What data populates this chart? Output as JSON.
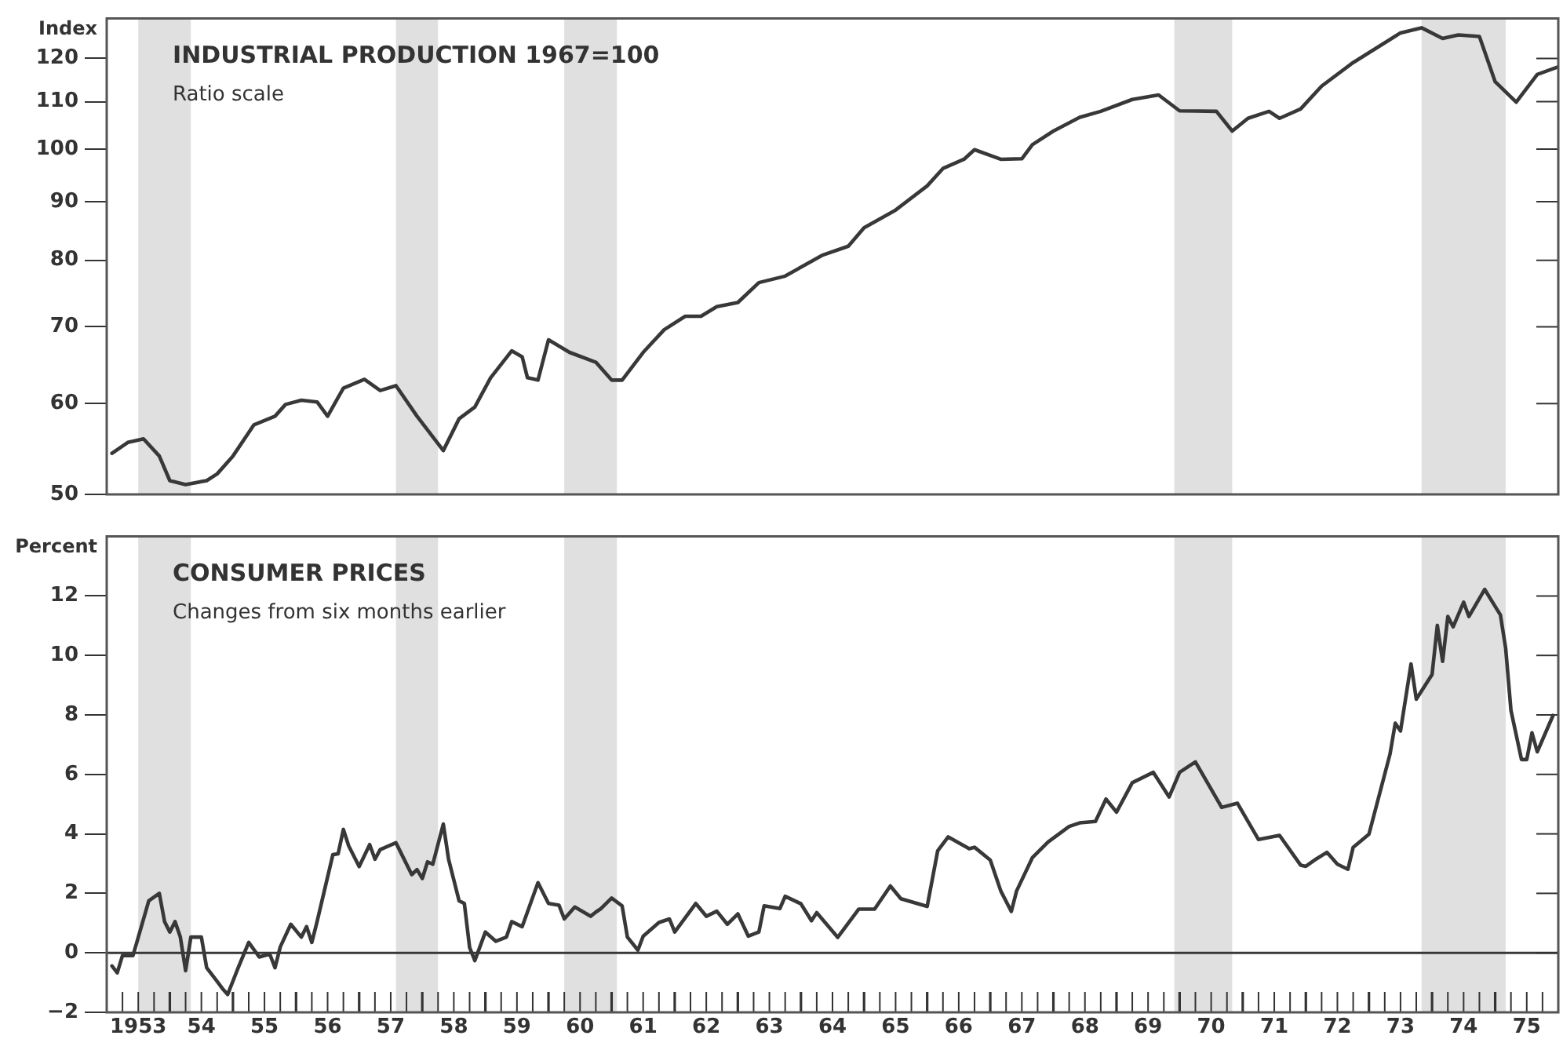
{
  "chart_data": [
    {
      "type": "line",
      "title": "INDUSTRIAL PRODUCTION 1967=100",
      "subtitle": "Ratio scale",
      "ylabel": "Index",
      "log": "y",
      "grid": false,
      "tick_labels": "y",
      "xlim": [
        "1953-01",
        "1976-01"
      ],
      "ylim": [
        50,
        130
      ],
      "yticks": [
        50,
        60,
        70,
        80,
        90,
        100,
        110,
        120
      ],
      "bands": [
        {
          "axis": "x",
          "from": "1953-07",
          "to": "1954-05",
          "color": "#e0e0e0"
        },
        {
          "axis": "x",
          "from": "1957-08",
          "to": "1958-04",
          "color": "#e0e0e0"
        },
        {
          "axis": "x",
          "from": "1960-04",
          "to": "1961-02",
          "color": "#e0e0e0"
        },
        {
          "axis": "x",
          "from": "1969-12",
          "to": "1970-11",
          "color": "#e0e0e0"
        },
        {
          "axis": "x",
          "from": "1973-11",
          "to": "1975-03",
          "color": "#e0e0e0"
        }
      ],
      "series": [
        {
          "color": "#383838",
          "x": [
            "1953-02",
            "1953-05",
            "1953-08",
            "1953-11",
            "1954-01",
            "1954-04",
            "1954-08",
            "1954-10",
            "1955-01",
            "1955-05",
            "1955-09",
            "1955-11",
            "1956-02",
            "1956-05",
            "1956-07",
            "1956-10",
            "1957-02",
            "1957-05",
            "1957-08",
            "1957-12",
            "1958-05",
            "1958-08",
            "1958-11",
            "1959-02",
            "1959-06",
            "1959-08",
            "1959-09",
            "1959-11",
            "1960-01",
            "1960-05",
            "1960-10",
            "1961-01",
            "1961-03",
            "1961-07",
            "1961-11",
            "1962-03",
            "1962-06",
            "1962-09",
            "1963-01",
            "1963-05",
            "1963-10",
            "1964-05",
            "1964-10",
            "1965-01",
            "1965-07",
            "1966-01",
            "1966-04",
            "1966-08",
            "1966-10",
            "1967-03",
            "1967-07",
            "1967-09",
            "1968-01",
            "1968-06",
            "1968-10",
            "1969-04",
            "1969-09",
            "1970-01",
            "1970-08",
            "1970-11",
            "1971-02",
            "1971-06",
            "1971-08",
            "1971-12",
            "1972-04",
            "1972-10",
            "1973-03",
            "1973-07",
            "1973-11",
            "1974-03",
            "1974-06",
            "1974-10",
            "1975-01",
            "1975-05",
            "1975-09",
            "1976-01"
          ],
          "values": [
            54.3,
            55.5,
            55.9,
            54,
            51.4,
            51,
            51.4,
            52.1,
            54,
            57.5,
            58.5,
            59.9,
            60.4,
            60.2,
            58.5,
            61.9,
            63,
            61.6,
            62.2,
            58.5,
            54.6,
            58.2,
            59.6,
            63.2,
            66.7,
            65.9,
            63.2,
            62.9,
            68.2,
            66.5,
            65.2,
            62.9,
            62.9,
            66.5,
            69.6,
            71.5,
            71.5,
            72.9,
            73.5,
            76.5,
            77.5,
            80.8,
            82.3,
            85.4,
            88.5,
            92.9,
            96.2,
            98,
            99.9,
            98,
            98.1,
            100.9,
            103.7,
            106.6,
            107.9,
            110.5,
            111.5,
            108,
            107.9,
            103.7,
            106.4,
            107.9,
            106.4,
            108.4,
            113.5,
            119,
            123,
            126.3,
            127.6,
            124.9,
            125.8,
            125.4,
            114.5,
            109.9,
            116.2,
            118
          ]
        }
      ]
    },
    {
      "type": "line",
      "title": "CONSUMER PRICES",
      "subtitle": "Changes from six months earlier",
      "ylabel": "Percent",
      "grid": false,
      "xlim": [
        "1953-01",
        "1976-01"
      ],
      "ylim": [
        -2,
        14
      ],
      "yticks": [
        {
          "value": -2,
          "label": "−2"
        },
        0,
        2,
        4,
        6,
        8,
        10,
        12
      ],
      "xticks": [
        {
          "value": "1953-04",
          "label": null
        },
        {
          "value": "1953-07",
          "label": "1953"
        },
        {
          "value": "1953-10",
          "label": null
        },
        {
          "value": "1954-01",
          "label": null
        },
        {
          "value": "1954-04",
          "label": null
        },
        {
          "value": "1954-07",
          "label": "54"
        },
        {
          "value": "1954-10",
          "label": null
        },
        {
          "value": "1955-01",
          "label": null
        },
        {
          "value": "1955-04",
          "label": null
        },
        {
          "value": "1955-07",
          "label": "55"
        },
        {
          "value": "1955-10",
          "label": null
        },
        {
          "value": "1956-01",
          "label": null
        },
        {
          "value": "1956-04",
          "label": null
        },
        {
          "value": "1956-07",
          "label": "56"
        },
        {
          "value": "1956-10",
          "label": null
        },
        {
          "value": "1957-01",
          "label": null
        },
        {
          "value": "1957-04",
          "label": null
        },
        {
          "value": "1957-07",
          "label": "57"
        },
        {
          "value": "1957-10",
          "label": null
        },
        {
          "value": "1958-01",
          "label": null
        },
        {
          "value": "1958-04",
          "label": null
        },
        {
          "value": "1958-07",
          "label": "58"
        },
        {
          "value": "1958-10",
          "label": null
        },
        {
          "value": "1959-01",
          "label": null
        },
        {
          "value": "1959-04",
          "label": null
        },
        {
          "value": "1959-07",
          "label": "59"
        },
        {
          "value": "1959-10",
          "label": null
        },
        {
          "value": "1960-01",
          "label": null
        },
        {
          "value": "1960-04",
          "label": null
        },
        {
          "value": "1960-07",
          "label": "60"
        },
        {
          "value": "1960-10",
          "label": null
        },
        {
          "value": "1961-01",
          "label": null
        },
        {
          "value": "1961-04",
          "label": null
        },
        {
          "value": "1961-07",
          "label": "61"
        },
        {
          "value": "1961-10",
          "label": null
        },
        {
          "value": "1962-01",
          "label": null
        },
        {
          "value": "1962-04",
          "label": null
        },
        {
          "value": "1962-07",
          "label": "62"
        },
        {
          "value": "1962-10",
          "label": null
        },
        {
          "value": "1963-01",
          "label": null
        },
        {
          "value": "1963-04",
          "label": null
        },
        {
          "value": "1963-07",
          "label": "63"
        },
        {
          "value": "1963-10",
          "label": null
        },
        {
          "value": "1964-01",
          "label": null
        },
        {
          "value": "1964-04",
          "label": null
        },
        {
          "value": "1964-07",
          "label": "64"
        },
        {
          "value": "1964-10",
          "label": null
        },
        {
          "value": "1965-01",
          "label": null
        },
        {
          "value": "1965-04",
          "label": null
        },
        {
          "value": "1965-07",
          "label": "65"
        },
        {
          "value": "1965-10",
          "label": null
        },
        {
          "value": "1966-01",
          "label": null
        },
        {
          "value": "1966-04",
          "label": null
        },
        {
          "value": "1966-07",
          "label": "66"
        },
        {
          "value": "1966-10",
          "label": null
        },
        {
          "value": "1967-01",
          "label": null
        },
        {
          "value": "1967-04",
          "label": null
        },
        {
          "value": "1967-07",
          "label": "67"
        },
        {
          "value": "1967-10",
          "label": null
        },
        {
          "value": "1968-01",
          "label": null
        },
        {
          "value": "1968-04",
          "label": null
        },
        {
          "value": "1968-07",
          "label": "68"
        },
        {
          "value": "1968-10",
          "label": null
        },
        {
          "value": "1969-01",
          "label": null
        },
        {
          "value": "1969-04",
          "label": null
        },
        {
          "value": "1969-07",
          "label": "69"
        },
        {
          "value": "1969-10",
          "label": null
        },
        {
          "value": "1970-01",
          "label": null
        },
        {
          "value": "1970-04",
          "label": null
        },
        {
          "value": "1970-07",
          "label": "70"
        },
        {
          "value": "1970-10",
          "label": null
        },
        {
          "value": "1971-01",
          "label": null
        },
        {
          "value": "1971-04",
          "label": null
        },
        {
          "value": "1971-07",
          "label": "71"
        },
        {
          "value": "1971-10",
          "label": null
        },
        {
          "value": "1972-01",
          "label": null
        },
        {
          "value": "1972-04",
          "label": null
        },
        {
          "value": "1972-07",
          "label": "72"
        },
        {
          "value": "1972-10",
          "label": null
        },
        {
          "value": "1973-01",
          "label": null
        },
        {
          "value": "1973-04",
          "label": null
        },
        {
          "value": "1973-07",
          "label": "73"
        },
        {
          "value": "1973-10",
          "label": null
        },
        {
          "value": "1974-01",
          "label": null
        },
        {
          "value": "1974-04",
          "label": null
        },
        {
          "value": "1974-07",
          "label": "74"
        },
        {
          "value": "1974-10",
          "label": null
        },
        {
          "value": "1975-01",
          "label": null
        },
        {
          "value": "1975-04",
          "label": null
        },
        {
          "value": "1975-07",
          "label": "75"
        },
        {
          "value": "1975-10",
          "label": null
        }
      ],
      "ref_lines": [
        {
          "axis": "y",
          "value": 0,
          "color": "#383838"
        }
      ],
      "bands": [
        {
          "axis": "x",
          "from": "1953-07",
          "to": "1954-05",
          "color": "#e0e0e0"
        },
        {
          "axis": "x",
          "from": "1957-08",
          "to": "1958-04",
          "color": "#e0e0e0"
        },
        {
          "axis": "x",
          "from": "1960-04",
          "to": "1961-02",
          "color": "#e0e0e0"
        },
        {
          "axis": "x",
          "from": "1969-12",
          "to": "1970-11",
          "color": "#e0e0e0"
        },
        {
          "axis": "x",
          "from": "1973-11",
          "to": "1975-03",
          "color": "#e0e0e0"
        }
      ],
      "series": [
        {
          "color": "#383838",
          "x": [
            "1953-02",
            "1953-03",
            "1953-04",
            "1953-06",
            "1953-09",
            "1953-11",
            "1953-12",
            "1954-01",
            "1954-02",
            "1954-03",
            "1954-04",
            "1954-05",
            "1954-07",
            "1954-08",
            "1954-10",
            "1954-11",
            "1954-12",
            "1955-02",
            "1955-04",
            "1955-06",
            "1955-08",
            "1955-09",
            "1955-10",
            "1955-12",
            "1956-02",
            "1956-03",
            "1956-04",
            "1956-05",
            "1956-08",
            "1956-09",
            "1956-10",
            "1956-11",
            "1957-01",
            "1957-03",
            "1957-04",
            "1957-05",
            "1957-08",
            "1957-11",
            "1957-12",
            "1958-01",
            "1958-02",
            "1958-03",
            "1958-05",
            "1958-06",
            "1958-08",
            "1958-09",
            "1958-10",
            "1958-11",
            "1959-01",
            "1959-03",
            "1959-05",
            "1959-06",
            "1959-08",
            "1959-11",
            "1960-01",
            "1960-03",
            "1960-04",
            "1960-06",
            "1960-09",
            "1960-10",
            "1960-11",
            "1961-01",
            "1961-03",
            "1961-04",
            "1961-06",
            "1961-07",
            "1961-10",
            "1961-12",
            "1962-01",
            "1962-05",
            "1962-07",
            "1962-09",
            "1962-11",
            "1963-01",
            "1963-03",
            "1963-05",
            "1963-06",
            "1963-09",
            "1963-10",
            "1964-01",
            "1964-03",
            "1964-04",
            "1964-08",
            "1964-12",
            "1965-03",
            "1965-06",
            "1965-08",
            "1966-01",
            "1966-03",
            "1966-05",
            "1966-09",
            "1966-10",
            "1967-01",
            "1967-03",
            "1967-05",
            "1967-06",
            "1967-09",
            "1967-12",
            "1968-04",
            "1968-06",
            "1968-09",
            "1968-11",
            "1969-01",
            "1969-04",
            "1969-08",
            "1969-11",
            "1970-01",
            "1970-04",
            "1970-09",
            "1970-12",
            "1971-04",
            "1971-08",
            "1971-12",
            "1972-01",
            "1972-03",
            "1972-05",
            "1972-07",
            "1972-09",
            "1972-10",
            "1973-01",
            "1973-05",
            "1973-06",
            "1973-07",
            "1973-09",
            "1973-10",
            "1974-01",
            "1974-02",
            "1974-03",
            "1974-04",
            "1974-05",
            "1974-07",
            "1974-08",
            "1974-11",
            "1975-02",
            "1975-03",
            "1975-04",
            "1975-06",
            "1975-07",
            "1975-08",
            "1975-09",
            "1975-12"
          ],
          "values": [
            -0.44,
            -0.67,
            -0.09,
            -0.09,
            1.75,
            2,
            1.05,
            0.7,
            1.05,
            0.53,
            -0.6,
            0.53,
            0.53,
            -0.5,
            -0.96,
            -1.2,
            -1.4,
            -0.5,
            0.35,
            -0.14,
            -0.04,
            -0.5,
            0.2,
            0.96,
            0.53,
            0.88,
            0.35,
            1.05,
            3.3,
            3.33,
            4.15,
            3.6,
            2.9,
            3.64,
            3.15,
            3.47,
            3.7,
            2.63,
            2.8,
            2.5,
            3.06,
            2.98,
            4.33,
            3.15,
            1.75,
            1.66,
            0.18,
            -0.26,
            0.7,
            0.39,
            0.53,
            1.05,
            0.88,
            2.36,
            1.66,
            1.6,
            1.14,
            1.54,
            1.23,
            1.37,
            1.49,
            1.84,
            1.58,
            0.53,
            0.09,
            0.56,
            1.02,
            1.14,
            0.7,
            1.66,
            1.23,
            1.4,
            0.96,
            1.31,
            0.56,
            0.7,
            1.58,
            1.49,
            1.9,
            1.65,
            1.08,
            1.35,
            0.52,
            1.47,
            1.47,
            2.25,
            1.82,
            1.56,
            3.43,
            3.9,
            3.5,
            3.55,
            3.12,
            2.08,
            1.39,
            2.08,
            3.2,
            3.73,
            4.25,
            4.37,
            4.42,
            5.17,
            4.73,
            5.72,
            6.07,
            5.24,
            6.07,
            6.42,
            4.89,
            5.03,
            3.81,
            3.95,
            2.95,
            2.91,
            3.16,
            3.38,
            2.98,
            2.81,
            3.55,
            3.99,
            6.68,
            7.72,
            7.46,
            9.71,
            8.53,
            9.36,
            11.01,
            9.8,
            11.31,
            10.96,
            11.79,
            11.31,
            12.22,
            11.36,
            10.23,
            8.15,
            6.5,
            6.5,
            7.4,
            6.76,
            7.98
          ]
        }
      ]
    }
  ]
}
